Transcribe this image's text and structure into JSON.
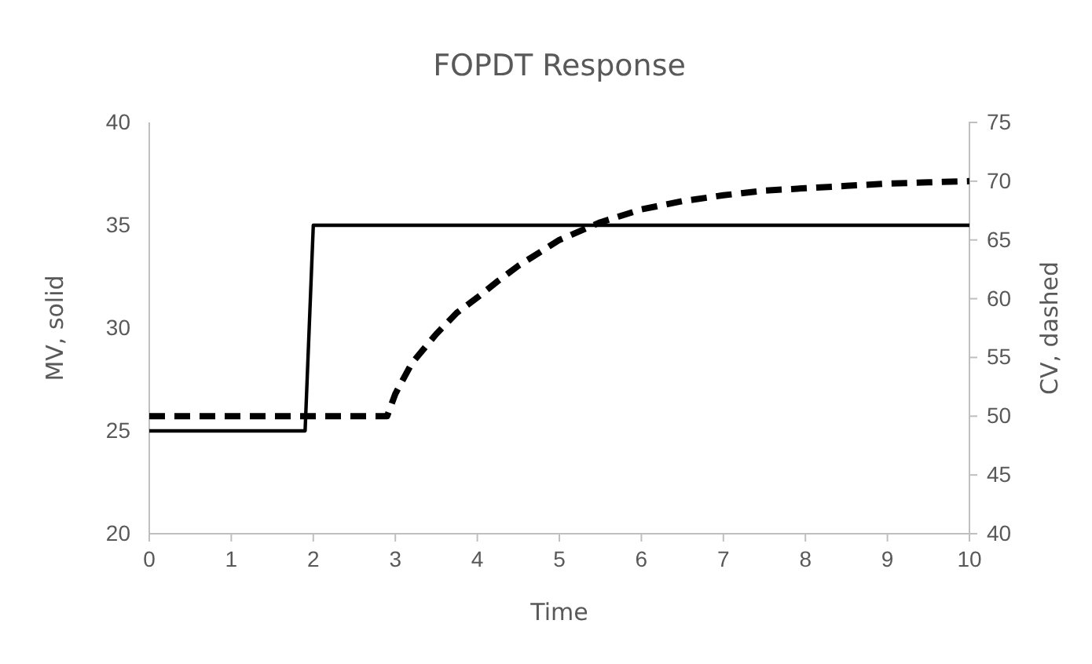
{
  "chart_data": {
    "type": "line",
    "title": "FOPDT Response",
    "xlabel": "Time",
    "ylabel": "MV, solid",
    "y2label": "CV, dashed",
    "xlim": [
      0,
      10
    ],
    "xticks": [
      0,
      1,
      2,
      3,
      4,
      5,
      6,
      7,
      8,
      9,
      10
    ],
    "ylim": [
      20,
      40
    ],
    "yticks": [
      20,
      25,
      30,
      35,
      40
    ],
    "y2lim": [
      40,
      75
    ],
    "y2ticks": [
      40,
      45,
      50,
      55,
      60,
      65,
      70,
      75
    ],
    "grid": false,
    "marker": "none",
    "series": [
      {
        "color": "#000000",
        "line_style": "solid",
        "x": [
          0,
          1.9,
          2,
          10
        ],
        "values": [
          25,
          25,
          35,
          35
        ]
      },
      {
        "color": "#000000",
        "line_style": "dashed",
        "axis": "y2",
        "x": [
          0,
          1,
          2,
          2.9,
          3.0,
          3.2,
          3.5,
          3.75,
          4,
          4.25,
          4.5,
          5,
          5.5,
          6,
          6.5,
          7,
          7.5,
          8,
          8.5,
          9,
          9.5,
          10
        ],
        "values": [
          50,
          50,
          50,
          50,
          51.9,
          54.5,
          57,
          58.8,
          60.1,
          61.5,
          62.8,
          65,
          66.5,
          67.6,
          68.3,
          68.8,
          69.2,
          69.4,
          69.6,
          69.8,
          69.9,
          70
        ]
      }
    ]
  }
}
